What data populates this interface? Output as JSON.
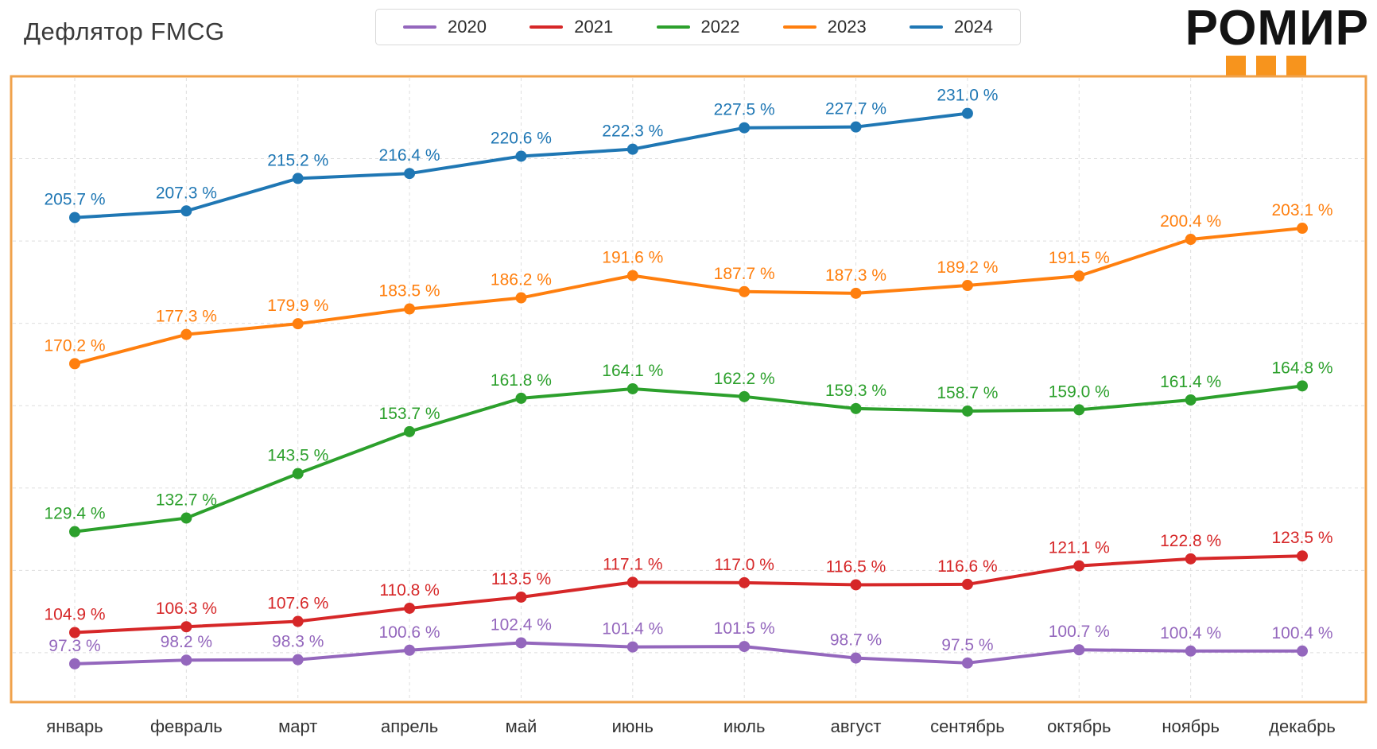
{
  "header": {
    "logo": {
      "text": "РОМИР",
      "squares_color": "#F7941D",
      "squares_count": 3
    }
  },
  "chart_data": {
    "type": "line",
    "title": "Дефлятор FMCG",
    "categories": [
      "январь",
      "февраль",
      "март",
      "апрель",
      "май",
      "июнь",
      "июль",
      "август",
      "сентябрь",
      "октябрь",
      "ноябрь",
      "декабрь"
    ],
    "label_suffix": " %",
    "ylim": [
      88,
      240
    ],
    "gridlines_y": [
      100,
      120,
      140,
      160,
      180,
      200,
      220
    ],
    "grid": "dashed",
    "legend_position": "top-center",
    "plot_border_color": "#F0A24B",
    "grid_color": "#dedede",
    "axis_label_color": "#333333",
    "series": [
      {
        "name": "2020",
        "color": "#9467bd",
        "values": [
          97.3,
          98.2,
          98.3,
          100.6,
          102.4,
          101.4,
          101.5,
          98.7,
          97.5,
          100.7,
          100.4,
          100.4
        ]
      },
      {
        "name": "2021",
        "color": "#d62728",
        "values": [
          104.9,
          106.3,
          107.6,
          110.8,
          113.5,
          117.1,
          117.0,
          116.5,
          116.6,
          121.1,
          122.8,
          123.5
        ]
      },
      {
        "name": "2022",
        "color": "#2ca02c",
        "values": [
          129.4,
          132.7,
          143.5,
          153.7,
          161.8,
          164.1,
          162.2,
          159.3,
          158.7,
          159.0,
          161.4,
          164.8
        ]
      },
      {
        "name": "2023",
        "color": "#ff7f0e",
        "values": [
          170.2,
          177.3,
          179.9,
          183.5,
          186.2,
          191.6,
          187.7,
          187.3,
          189.2,
          191.5,
          200.4,
          203.1
        ]
      },
      {
        "name": "2024",
        "color": "#1f77b4",
        "values": [
          205.7,
          207.3,
          215.2,
          216.4,
          220.6,
          222.3,
          227.5,
          227.7,
          231.0
        ]
      }
    ]
  }
}
